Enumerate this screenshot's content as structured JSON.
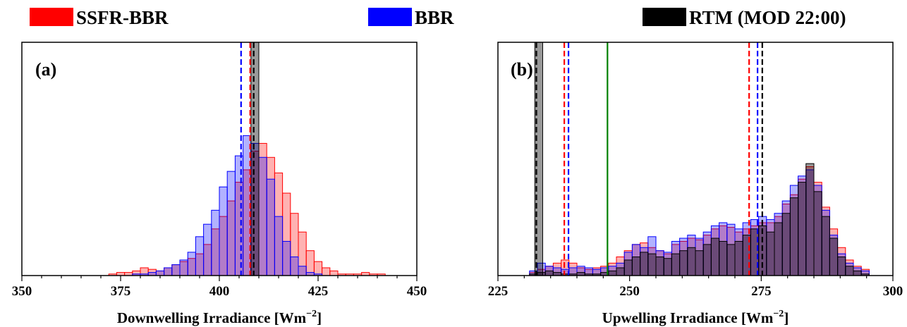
{
  "legend": [
    {
      "label": "SSFR-BBR",
      "color": "#ff0000"
    },
    {
      "label": "BBR",
      "color": "#0000ff"
    },
    {
      "label": "RTM (MOD 22:00)",
      "color": "#000000"
    }
  ],
  "chart_data": [
    {
      "type": "histogram",
      "panel_label": "(a)",
      "xlabel": "Downwelling Irradiance [Wm",
      "xlabel_sup": "−2",
      "xlabel_end": "]",
      "xlim": [
        350,
        450
      ],
      "ylim": [
        0,
        150
      ],
      "xticks": [
        350,
        375,
        400,
        425,
        450
      ],
      "xtick_labels": [
        "350",
        "375",
        "400",
        "425",
        "450"
      ],
      "bin_width": 2,
      "series": [
        {
          "name": "SSFR-BBR",
          "bins": [
            372,
            374,
            376,
            378,
            380,
            382,
            384,
            386,
            388,
            390,
            392,
            394,
            396,
            398,
            400,
            402,
            404,
            406,
            408,
            410,
            412,
            414,
            416,
            418,
            420,
            422,
            424,
            426,
            428,
            430,
            432,
            434,
            436,
            438,
            440
          ],
          "counts": [
            1,
            2,
            2,
            3,
            5,
            4,
            3,
            5,
            7,
            9,
            11,
            14,
            20,
            30,
            38,
            48,
            60,
            68,
            80,
            85,
            76,
            66,
            53,
            40,
            28,
            16,
            9,
            5,
            3,
            1,
            1,
            1,
            2,
            1,
            1
          ],
          "fill": "rgba(255,0,0,0.3)",
          "edge": "#ff0000"
        },
        {
          "name": "BBR",
          "bins": [
            378,
            380,
            382,
            384,
            386,
            388,
            390,
            392,
            394,
            396,
            398,
            400,
            402,
            404,
            406,
            408,
            410,
            412,
            414,
            416,
            418,
            420,
            422,
            424
          ],
          "counts": [
            1,
            1,
            2,
            3,
            5,
            7,
            10,
            15,
            25,
            33,
            42,
            57,
            67,
            77,
            90,
            85,
            76,
            62,
            38,
            22,
            12,
            6,
            2,
            1
          ],
          "fill": "rgba(0,0,255,0.3)",
          "edge": "#0000ff"
        },
        {
          "name": "RTM (MOD 22:00)",
          "bins": [
            408
          ],
          "counts": [
            150
          ],
          "fill": "rgba(0,0,0,0.4)",
          "edge": "#000000"
        }
      ],
      "vlines": [
        {
          "x": 405.5,
          "color": "#0000ff",
          "style": "dashed"
        },
        {
          "x": 407.8,
          "color": "#ff0000",
          "style": "dashed"
        },
        {
          "x": 408.7,
          "color": "#000000",
          "style": "dashed"
        }
      ]
    },
    {
      "type": "histogram",
      "panel_label": "(b)",
      "xlabel": "Upwelling Irradiance [Wm",
      "xlabel_sup": "−2",
      "xlabel_end": "]",
      "xlim": [
        225,
        300
      ],
      "ylim": [
        0,
        150
      ],
      "xticks": [
        225,
        250,
        275,
        300
      ],
      "xtick_labels": [
        "225",
        "250",
        "275",
        "300"
      ],
      "bin_width": 1.5,
      "series": [
        {
          "name": "SSFR-BBR",
          "bins": [
            231,
            232.5,
            234,
            235.5,
            237,
            238.5,
            240,
            241.5,
            243,
            244.5,
            246,
            247.5,
            249,
            250.5,
            252,
            253.5,
            255,
            256.5,
            258,
            259.5,
            261,
            262.5,
            264,
            265.5,
            267,
            268.5,
            270,
            271.5,
            273,
            274.5,
            276,
            277.5,
            279,
            280.5,
            282,
            283.5,
            285,
            286.5,
            288,
            289.5,
            291,
            292.5,
            294
          ],
          "counts": [
            2,
            4,
            6,
            8,
            10,
            8,
            5,
            4,
            5,
            6,
            8,
            12,
            16,
            20,
            21,
            18,
            16,
            14,
            20,
            22,
            24,
            23,
            26,
            30,
            32,
            31,
            28,
            30,
            32,
            34,
            34,
            38,
            46,
            52,
            62,
            70,
            60,
            44,
            30,
            18,
            10,
            6,
            4
          ],
          "fill": "rgba(255,0,0,0.3)",
          "edge": "#ff0000"
        },
        {
          "name": "BBR",
          "bins": [
            231,
            232.5,
            234,
            235.5,
            237,
            238.5,
            240,
            241.5,
            243,
            244.5,
            246,
            247.5,
            249,
            250.5,
            252,
            253.5,
            255,
            256.5,
            258,
            259.5,
            261,
            262.5,
            264,
            265.5,
            267,
            268.5,
            270,
            271.5,
            273,
            274.5,
            276,
            277.5,
            279,
            280.5,
            282,
            283.5,
            285,
            286.5,
            288,
            289.5,
            291,
            292.5,
            294
          ],
          "counts": [
            3,
            8,
            6,
            5,
            4,
            5,
            6,
            5,
            4,
            5,
            6,
            8,
            15,
            20,
            18,
            25,
            16,
            15,
            22,
            24,
            26,
            24,
            28,
            32,
            34,
            33,
            30,
            34,
            36,
            38,
            36,
            40,
            48,
            58,
            64,
            68,
            58,
            42,
            26,
            14,
            8,
            5,
            3
          ],
          "fill": "rgba(0,0,255,0.3)",
          "edge": "#0000ff"
        },
        {
          "name": "RTM (MOD 22:00)",
          "bins": [
            231,
            232.5,
            234,
            235.5,
            237,
            238.5,
            240,
            241.5,
            243,
            244.5,
            246,
            247.5,
            249,
            250.5,
            252,
            253.5,
            255,
            256.5,
            258,
            259.5,
            261,
            262.5,
            264,
            265.5,
            267,
            268.5,
            270,
            271.5,
            273,
            274.5,
            276,
            277.5,
            279,
            280.5,
            282,
            283.5,
            285,
            286.5,
            288,
            289.5,
            291,
            292.5,
            294
          ],
          "counts": [
            1,
            2,
            3,
            2,
            1,
            1,
            2,
            1,
            1,
            2,
            3,
            5,
            10,
            12,
            15,
            14,
            12,
            11,
            14,
            16,
            18,
            16,
            20,
            24,
            22,
            20,
            22,
            26,
            30,
            32,
            28,
            34,
            40,
            50,
            60,
            72,
            54,
            38,
            24,
            12,
            6,
            3,
            1
          ],
          "fill": "rgba(0,0,0,0.4)",
          "edge": "#000000"
        },
        {
          "name": "RTM (MOD 22:00)",
          "bins": [
            232
          ],
          "counts": [
            150
          ],
          "fill": "rgba(0,0,0,0.4)",
          "edge": "#000000"
        }
      ],
      "vlines": [
        {
          "x": 232.3,
          "color": "#000000",
          "style": "dashed"
        },
        {
          "x": 237.6,
          "color": "#ff0000",
          "style": "dashed"
        },
        {
          "x": 238.4,
          "color": "#0000ff",
          "style": "dashed"
        },
        {
          "x": 245.8,
          "color": "#008000",
          "style": "solid"
        },
        {
          "x": 272.7,
          "color": "#ff0000",
          "style": "dashed"
        },
        {
          "x": 274.3,
          "color": "#0000ff",
          "style": "dashed"
        },
        {
          "x": 275.2,
          "color": "#000000",
          "style": "dashed"
        }
      ]
    }
  ]
}
